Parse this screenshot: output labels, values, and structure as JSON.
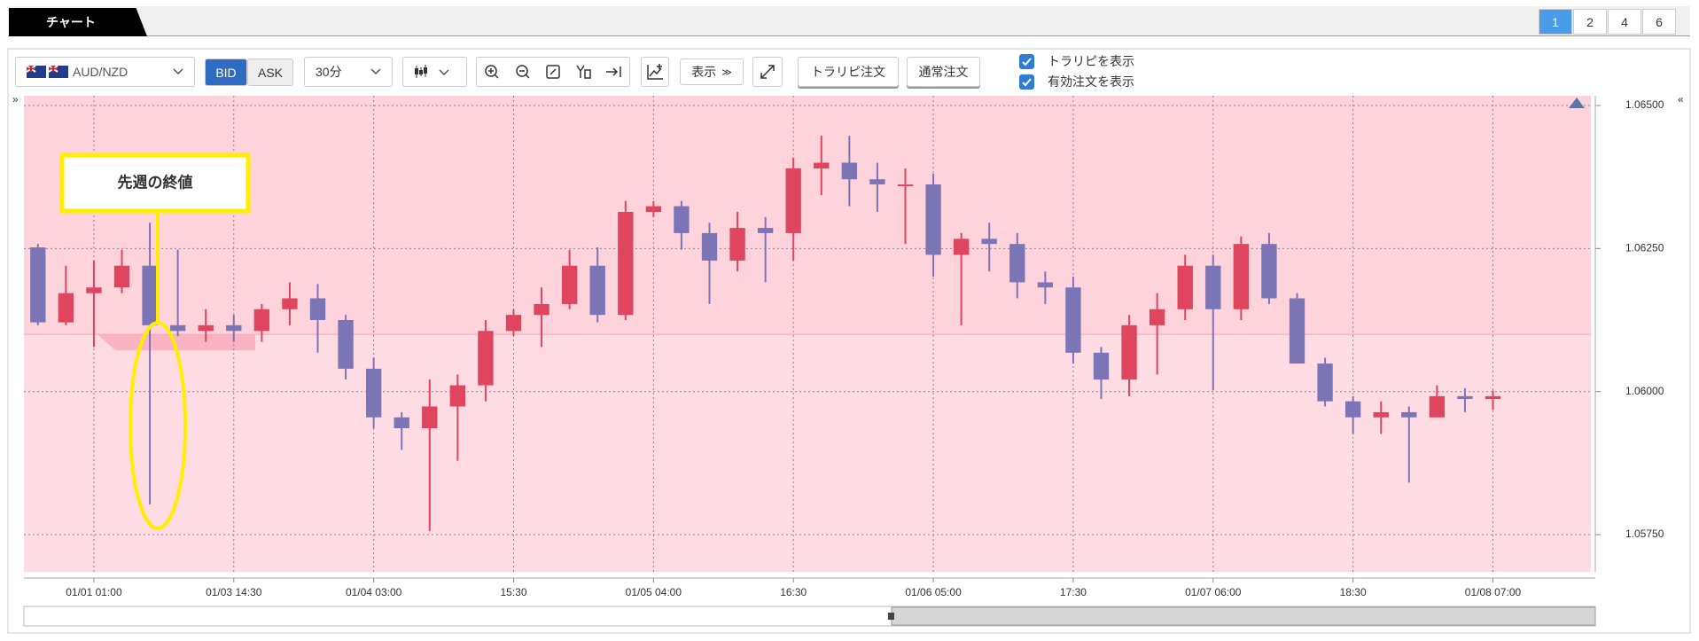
{
  "tabbar": {
    "title": "チャート",
    "pages": [
      "1",
      "2",
      "4",
      "6"
    ],
    "active_page": 0
  },
  "toolbar": {
    "pair": "AUD/NZD",
    "bid": "BID",
    "ask": "ASK",
    "active_side": "bid",
    "timeframe": "30分",
    "display": "表示",
    "trarip_order": "トラリピ注文",
    "normal_order": "通常注文",
    "checkboxes": [
      {
        "label": "トラリピを表示",
        "checked": true
      },
      {
        "label": "有効注文を表示",
        "checked": true
      }
    ]
  },
  "annotation": {
    "text": "先週の終値",
    "color": "#ffee00"
  },
  "chart_data": {
    "type": "candlestick",
    "up_color": "#e0455f",
    "down_color": "#7b74b5",
    "grid": true,
    "reference_line": 1.061,
    "ylim": [
      1.05685,
      1.06517
    ],
    "yticks": [
      {
        "value": 1.0575,
        "label": "1.05750"
      },
      {
        "value": 1.06,
        "label": "1.06000"
      },
      {
        "value": 1.0625,
        "label": "1.06250"
      },
      {
        "value": 1.065,
        "label": "1.06500"
      }
    ],
    "categories": [
      null,
      null,
      "01/01 01:00",
      null,
      null,
      null,
      null,
      "01/03 14:30",
      null,
      null,
      null,
      null,
      "01/04 03:00",
      null,
      null,
      null,
      null,
      "15:30",
      null,
      null,
      null,
      null,
      "01/05 04:00",
      null,
      null,
      null,
      null,
      "16:30",
      null,
      null,
      null,
      null,
      "01/06 05:00",
      null,
      null,
      null,
      null,
      "17:30",
      null,
      null,
      null,
      null,
      "01/07 06:00",
      null,
      null,
      null,
      null,
      "18:30",
      null,
      null,
      null,
      null,
      "01/08 07:00",
      null,
      null,
      null
    ],
    "open": [
      1.06252,
      1.06121,
      1.06172,
      1.06182,
      1.0622,
      1.06116,
      1.06106,
      1.06116,
      1.06106,
      1.06144,
      1.06163,
      1.06125,
      1.0604,
      1.05955,
      1.05936,
      1.05974,
      1.06011,
      1.06106,
      1.06134,
      1.06153,
      1.0622,
      1.06134,
      1.06314,
      1.06324,
      1.06277,
      1.06229,
      1.06286,
      1.06277,
      1.0639,
      1.064,
      1.06371,
      1.06362,
      1.06362,
      1.06239,
      1.06267,
      1.06258,
      1.06191,
      1.06182,
      1.06068,
      1.06021,
      1.06116,
      1.06144,
      1.0622,
      1.06144,
      1.06258,
      1.06163,
      1.06049,
      1.05983,
      1.05955,
      1.05964,
      1.05955,
      1.05992,
      1.05987,
      null,
      null,
      null
    ],
    "high": [
      1.06258,
      1.0622,
      1.06229,
      1.06248,
      1.06295,
      1.06248,
      1.06144,
      1.06134,
      1.06153,
      1.06191,
      1.06188,
      1.06134,
      1.06059,
      1.05964,
      1.06021,
      1.0603,
      1.06125,
      1.06144,
      1.06182,
      1.06248,
      1.06252,
      1.06333,
      1.06333,
      1.06333,
      1.06295,
      1.06314,
      1.06305,
      1.06409,
      1.06447,
      1.06447,
      1.064,
      1.0639,
      1.06381,
      1.06277,
      1.06295,
      1.06277,
      1.0621,
      1.06201,
      1.06078,
      1.06134,
      1.06172,
      1.06239,
      1.06239,
      1.06271,
      1.06277,
      1.06172,
      1.06059,
      1.05992,
      1.05983,
      1.05974,
      1.06011,
      1.06006,
      1.06002,
      null,
      null,
      null
    ],
    "low": [
      1.06116,
      1.06116,
      1.06078,
      1.06172,
      1.05803,
      1.06097,
      1.06087,
      1.06087,
      1.06087,
      1.06116,
      1.06068,
      1.06021,
      1.05936,
      1.05898,
      1.05756,
      1.05879,
      1.05983,
      1.06097,
      1.06078,
      1.06144,
      1.06121,
      1.06125,
      1.06305,
      1.06248,
      1.06153,
      1.0621,
      1.06191,
      1.06229,
      1.06343,
      1.06324,
      1.06314,
      1.06258,
      1.06201,
      1.06116,
      1.0621,
      1.06163,
      1.06153,
      1.06049,
      1.05987,
      1.05992,
      1.0603,
      1.06125,
      1.06002,
      1.06125,
      1.06153,
      1.06049,
      1.05974,
      1.05926,
      1.05926,
      1.05841,
      1.05955,
      1.05964,
      1.05968,
      null,
      null,
      null
    ],
    "close": [
      1.06121,
      1.06172,
      1.06182,
      1.0622,
      1.06116,
      1.06106,
      1.06116,
      1.06106,
      1.06144,
      1.06163,
      1.06125,
      1.0604,
      1.05955,
      1.05936,
      1.05974,
      1.06011,
      1.06106,
      1.06134,
      1.06153,
      1.0622,
      1.06134,
      1.06314,
      1.06324,
      1.06277,
      1.06229,
      1.06286,
      1.06277,
      1.0639,
      1.064,
      1.06371,
      1.06362,
      1.06362,
      1.06239,
      1.06267,
      1.06258,
      1.06191,
      1.06182,
      1.06068,
      1.06021,
      1.06116,
      1.06144,
      1.0622,
      1.06144,
      1.06258,
      1.06163,
      1.06049,
      1.05983,
      1.05955,
      1.05964,
      1.05955,
      1.05992,
      1.05987,
      1.05992,
      null,
      null,
      null
    ]
  }
}
